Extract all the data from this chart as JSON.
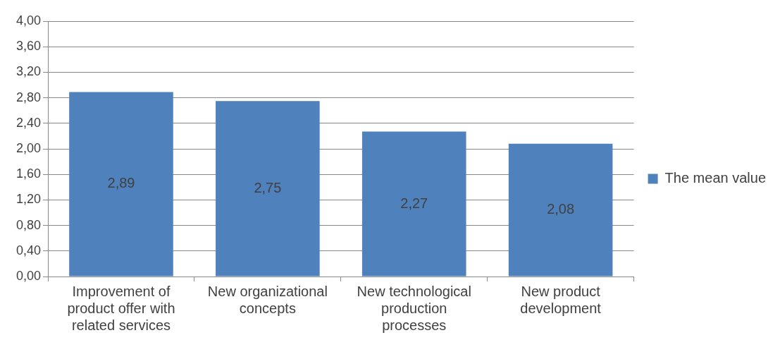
{
  "chart_data": {
    "type": "bar",
    "categories": [
      "Improvement of product offer with related services",
      "New organizational concepts",
      "New technological production processes",
      "New product development"
    ],
    "series": [
      {
        "name": "The mean value",
        "color": "#4f81bd",
        "values": [
          2.89,
          2.75,
          2.27,
          2.08
        ],
        "value_labels": [
          "2,89",
          "2,75",
          "2,27",
          "2,08"
        ]
      }
    ],
    "ylim": [
      0,
      4
    ],
    "yticks": [
      {
        "value": 0,
        "label": "0,00"
      },
      {
        "value": 0.4,
        "label": "0,40"
      },
      {
        "value": 0.8,
        "label": "0,80"
      },
      {
        "value": 1.2,
        "label": "1,20"
      },
      {
        "value": 1.6,
        "label": "1,60"
      },
      {
        "value": 2,
        "label": "2,00"
      },
      {
        "value": 2.4,
        "label": "2,40"
      },
      {
        "value": 2.8,
        "label": "2,80"
      },
      {
        "value": 3.2,
        "label": "3,20"
      },
      {
        "value": 3.6,
        "label": "3,60"
      },
      {
        "value": 4,
        "label": "4,00"
      }
    ],
    "grid": "y",
    "legend": "right"
  }
}
